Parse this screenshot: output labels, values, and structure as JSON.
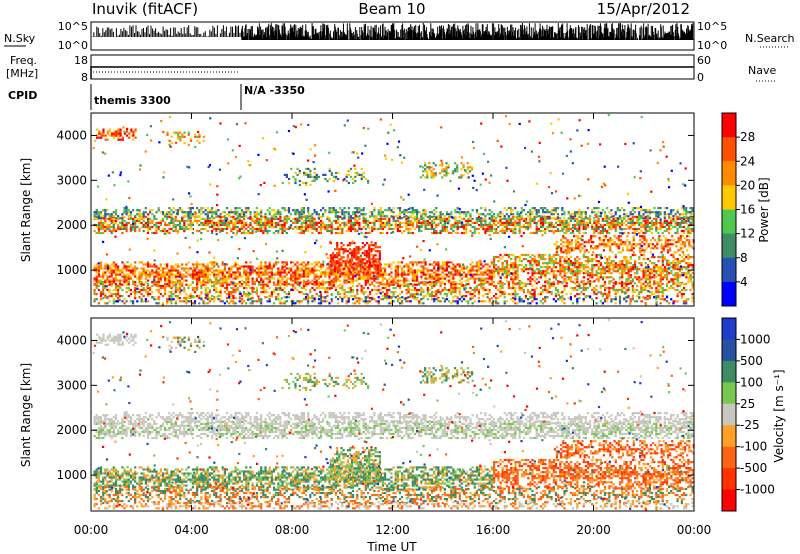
{
  "header": {
    "station": "Inuvik (fitACF)",
    "beam": "Beam 10",
    "date": "15/Apr/2012"
  },
  "status": {
    "nsky_label": "N.Sky",
    "nsky_ticks": [
      "10^5",
      "10^0"
    ],
    "nsearch_label": "N.Search",
    "nsearch_ticks": [
      "10^5",
      "10^0"
    ],
    "freq_label": "Freq.",
    "freq_unit": "[MHz]",
    "freq_ticks": [
      "18",
      "8"
    ],
    "nave_label": "Nave",
    "nave_ticks": [
      "60",
      "0"
    ],
    "cpid_label": "CPID",
    "cpid_segments": [
      {
        "name": "themis 3300",
        "start_hour": 0
      },
      {
        "name": "N/A -3350",
        "start_hour": 6
      }
    ]
  },
  "chart_data": [
    {
      "type": "heatmap",
      "panel": "power",
      "xlabel": "Time UT",
      "ylabel": "Slant Range [km]",
      "yticks": [
        "1000",
        "2000",
        "3000",
        "4000"
      ],
      "ylim": [
        200,
        4500
      ],
      "xlim_hours": [
        0,
        24
      ],
      "colorbar": {
        "label": "Power [dB]",
        "ticks": [
          "4",
          "8",
          "12",
          "16",
          "20",
          "24",
          "28"
        ],
        "colors": [
          "#0000ff",
          "#2850b4",
          "#3c8c64",
          "#50c850",
          "#ffc800",
          "#ff8c00",
          "#ff5000",
          "#ff0000"
        ]
      }
    },
    {
      "type": "heatmap",
      "panel": "velocity",
      "xlabel": "Time UT",
      "ylabel": "Slant Range [km]",
      "yticks": [
        "1000",
        "2000",
        "3000",
        "4000"
      ],
      "ylim": [
        200,
        4500
      ],
      "xlim_hours": [
        0,
        24
      ],
      "xticks": [
        "00:00",
        "04:00",
        "08:00",
        "12:00",
        "16:00",
        "20:00",
        "00:00"
      ],
      "colorbar": {
        "label": "Velocity [m s⁻¹]",
        "ticks": [
          "1000",
          "500",
          "100",
          "25",
          "-25",
          "-100",
          "-500",
          "-1000"
        ],
        "colors": [
          "#1e3cc8",
          "#2850a0",
          "#3c8c64",
          "#78c850",
          "#c8c8c0",
          "#ffa028",
          "#ff6414",
          "#ff3200",
          "#ff0000"
        ]
      }
    }
  ]
}
